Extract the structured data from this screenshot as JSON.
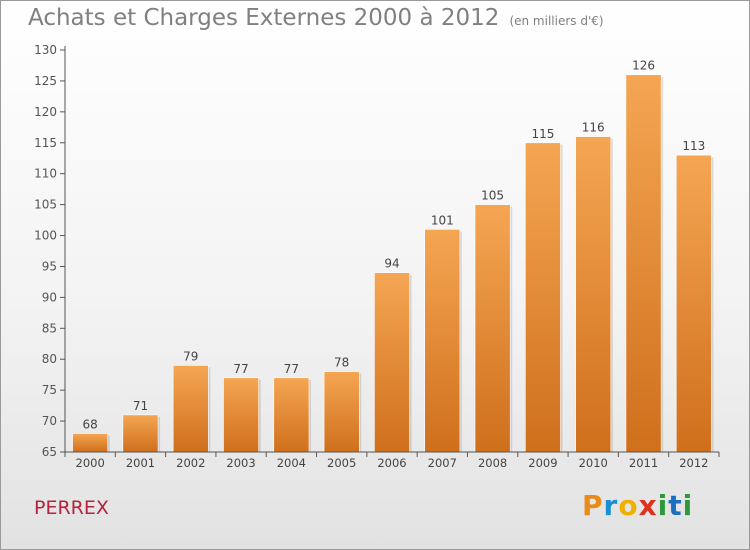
{
  "title": "Achats et Charges Externes 2000 à 2012",
  "unit": "(en milliers d'€)",
  "town": "PERREX",
  "logo": "Proxiti",
  "colors": {
    "bar_top": "#f5a653",
    "bar_bottom": "#cf6f1c",
    "axis": "#555555",
    "grid": "#cccccc"
  },
  "chart_data": {
    "type": "bar",
    "categories": [
      "2000",
      "2001",
      "2002",
      "2003",
      "2004",
      "2005",
      "2006",
      "2007",
      "2008",
      "2009",
      "2010",
      "2011",
      "2012"
    ],
    "values": [
      68,
      71,
      79,
      77,
      77,
      78,
      94,
      101,
      105,
      115,
      116,
      126,
      113
    ],
    "title": "Achats et Charges Externes 2000 à 2012",
    "xlabel": "",
    "ylabel": "",
    "ylim": [
      65,
      130
    ],
    "yticks": [
      65,
      70,
      75,
      80,
      85,
      90,
      95,
      100,
      105,
      110,
      115,
      120,
      125,
      130
    ],
    "grid": false,
    "legend": "none"
  }
}
